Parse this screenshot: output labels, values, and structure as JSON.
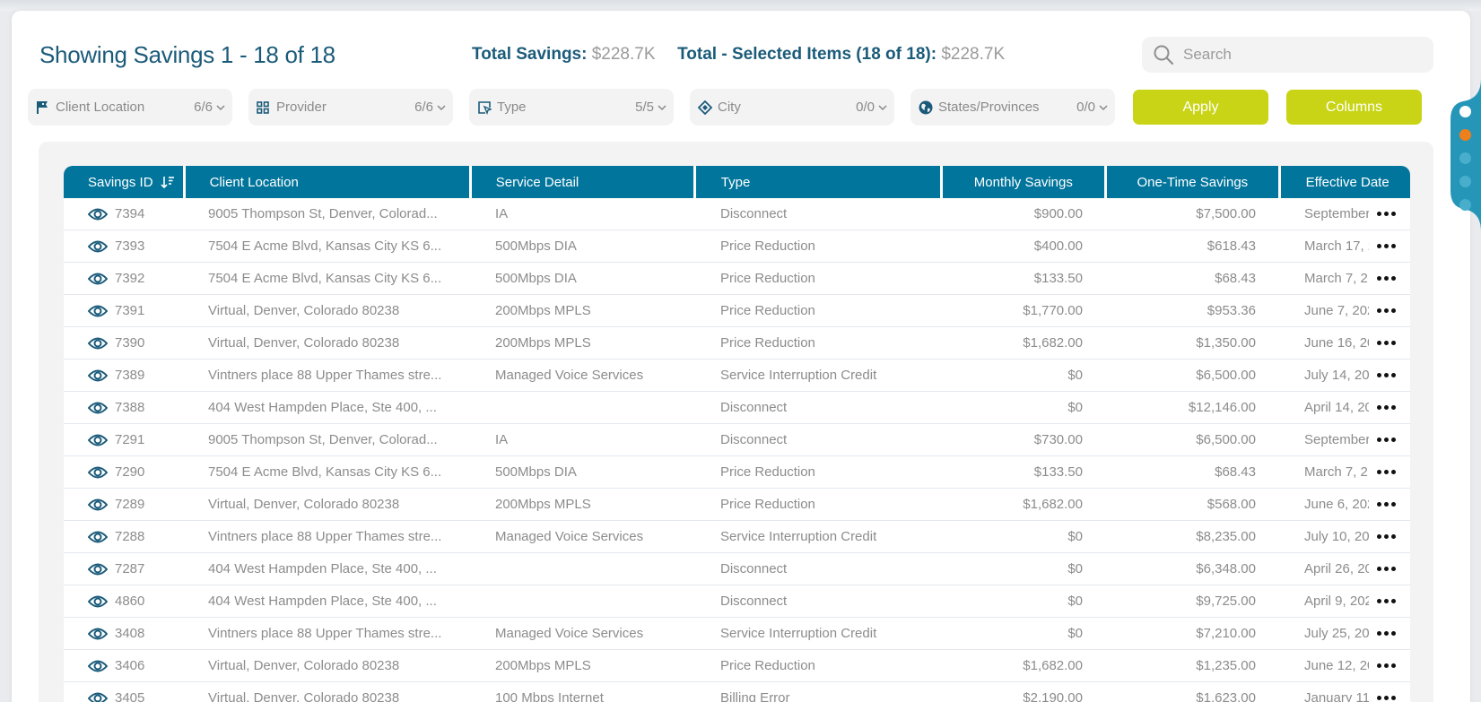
{
  "header": {
    "title": "Showing Savings 1 - 18 of 18",
    "total_savings_label": "Total Savings:",
    "total_savings_value": "$228.7K",
    "selected_label": "Total - Selected Items (18 of 18):",
    "selected_value": "$228.7K"
  },
  "search": {
    "placeholder": "Search",
    "value": ""
  },
  "filters": [
    {
      "label": "Client Location",
      "count": "6/6",
      "icon": "flag-icon"
    },
    {
      "label": "Provider",
      "count": "6/6",
      "icon": "grid-icon"
    },
    {
      "label": "Type",
      "count": "5/5",
      "icon": "cursor-box-icon"
    },
    {
      "label": "City",
      "count": "0/0",
      "icon": "tag-hands-icon"
    },
    {
      "label": "States/Provinces",
      "count": "0/0",
      "icon": "globe-icon"
    }
  ],
  "buttons": {
    "apply": "Apply",
    "columns": "Columns"
  },
  "colors": {
    "accent": "#02759c",
    "button": "#c8d415",
    "title": "#1b5b7a",
    "side_tab": "#2596b8",
    "active_dot": "#ef7f1a"
  },
  "table": {
    "columns": [
      "Savings ID",
      "Client Location",
      "Service Detail",
      "Type",
      "Monthly Savings",
      "One-Time Savings",
      "Effective Date"
    ],
    "rows": [
      {
        "id": "7394",
        "location": "9005 Thompson St, Denver, Colorad...",
        "service": "IA",
        "type": "Disconnect",
        "monthly": "$900.00",
        "onetime": "$7,500.00",
        "date": "September"
      },
      {
        "id": "7393",
        "location": "7504 E Acme Blvd, Kansas City KS 6...",
        "service": "500Mbps DIA",
        "type": "Price Reduction",
        "monthly": "$400.00",
        "onetime": "$618.43",
        "date": "March 17, 2"
      },
      {
        "id": "7392",
        "location": "7504 E Acme Blvd, Kansas City KS 6...",
        "service": "500Mbps DIA",
        "type": "Price Reduction",
        "monthly": "$133.50",
        "onetime": "$68.43",
        "date": "March 7, 2"
      },
      {
        "id": "7391",
        "location": "Virtual, Denver, Colorado 80238",
        "service": "200Mbps MPLS",
        "type": "Price Reduction",
        "monthly": "$1,770.00",
        "onetime": "$953.36",
        "date": "June 7, 202"
      },
      {
        "id": "7390",
        "location": "Virtual, Denver, Colorado 80238",
        "service": "200Mbps MPLS",
        "type": "Price Reduction",
        "monthly": "$1,682.00",
        "onetime": "$1,350.00",
        "date": "June 16, 20"
      },
      {
        "id": "7389",
        "location": "Vintners place 88 Upper Thames stre...",
        "service": "Managed Voice Services",
        "type": "Service Interruption Credit",
        "monthly": "$0",
        "onetime": "$6,500.00",
        "date": "July 14, 20"
      },
      {
        "id": "7388",
        "location": "404 West Hampden Place, Ste 400, ...",
        "service": "",
        "type": "Disconnect",
        "monthly": "$0",
        "onetime": "$12,146.00",
        "date": "April 14, 20"
      },
      {
        "id": "7291",
        "location": "9005 Thompson St, Denver, Colorad...",
        "service": "IA",
        "type": "Disconnect",
        "monthly": "$730.00",
        "onetime": "$6,500.00",
        "date": "September"
      },
      {
        "id": "7290",
        "location": "7504 E Acme Blvd, Kansas City KS 6...",
        "service": "500Mbps DIA",
        "type": "Price Reduction",
        "monthly": "$133.50",
        "onetime": "$68.43",
        "date": "March 7, 2"
      },
      {
        "id": "7289",
        "location": "Virtual, Denver, Colorado 80238",
        "service": "200Mbps MPLS",
        "type": "Price Reduction",
        "monthly": "$1,682.00",
        "onetime": "$568.00",
        "date": "June 6, 202"
      },
      {
        "id": "7288",
        "location": "Vintners place 88 Upper Thames stre...",
        "service": "Managed Voice Services",
        "type": "Service Interruption Credit",
        "monthly": "$0",
        "onetime": "$8,235.00",
        "date": "July 10, 20"
      },
      {
        "id": "7287",
        "location": "404 West Hampden Place, Ste 400, ...",
        "service": "",
        "type": "Disconnect",
        "monthly": "$0",
        "onetime": "$6,348.00",
        "date": "April 26, 20"
      },
      {
        "id": "4860",
        "location": "404 West Hampden Place, Ste 400, ...",
        "service": "",
        "type": "Disconnect",
        "monthly": "$0",
        "onetime": "$9,725.00",
        "date": "April 9, 202"
      },
      {
        "id": "3408",
        "location": "Vintners place 88 Upper Thames stre...",
        "service": "Managed Voice Services",
        "type": "Service Interruption Credit",
        "monthly": "$0",
        "onetime": "$7,210.00",
        "date": "July 25, 20"
      },
      {
        "id": "3406",
        "location": "Virtual, Denver, Colorado 80238",
        "service": "200Mbps MPLS",
        "type": "Price Reduction",
        "monthly": "$1,682.00",
        "onetime": "$1,235.00",
        "date": "June 12, 20"
      },
      {
        "id": "3405",
        "location": "Virtual, Denver, Colorado 80238",
        "service": "100 Mbps Internet",
        "type": "Billing Error",
        "monthly": "$2,190.00",
        "onetime": "$1,623.00",
        "date": "January 11"
      }
    ]
  }
}
